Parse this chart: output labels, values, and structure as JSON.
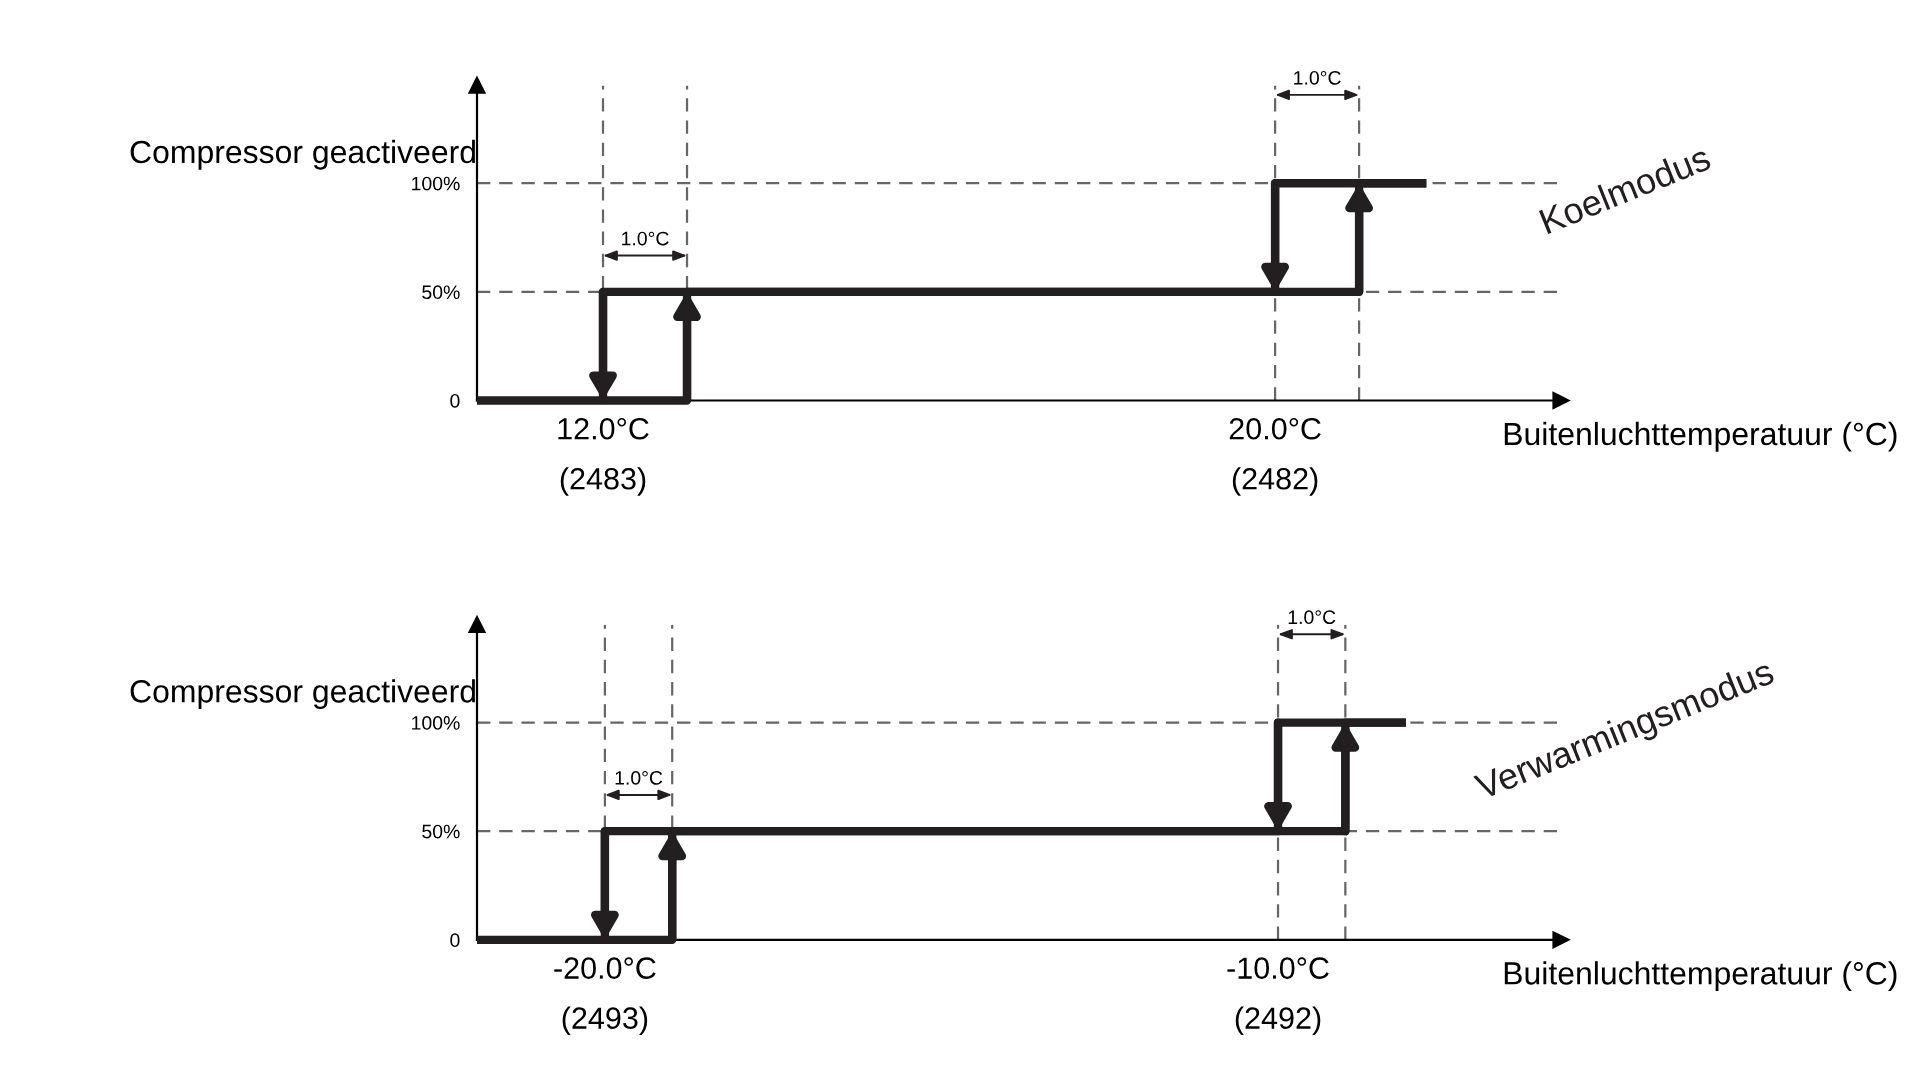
{
  "chart_data": [
    {
      "type": "line",
      "ylabel": "Compressor geactiveerd",
      "xlabel": "Buitenluchttemperatuur (°C)",
      "xlim": [
        10.5,
        23.4
      ],
      "ylim": [
        0,
        145
      ],
      "xticks": [
        {
          "value": 12,
          "label": "12.0°C"
        },
        {
          "value": 20,
          "label": "20.0°C"
        }
      ],
      "yticks": [
        {
          "value": 0,
          "label": "0"
        },
        {
          "value": 50,
          "label": "50%"
        },
        {
          "value": 100,
          "label": "100%"
        }
      ],
      "series": [
        {
          "color": "#231f20",
          "x": [
            10.5,
            13,
            13,
            21,
            21,
            21.8
          ],
          "values": [
            0,
            0,
            50,
            50,
            100,
            100
          ]
        },
        {
          "color": "#231f20",
          "x": [
            21.8,
            20,
            20,
            12,
            12
          ],
          "values": [
            100,
            100,
            50,
            50,
            0
          ]
        }
      ],
      "ref_lines": [
        {
          "axis": "y",
          "value": 50,
          "line_style": "dashed",
          "color": "#666666"
        },
        {
          "axis": "y",
          "value": 100,
          "line_style": "dashed",
          "color": "#666666"
        },
        {
          "axis": "x",
          "value": 12,
          "line_style": "dashed",
          "color": "#666666"
        },
        {
          "axis": "x",
          "value": 13,
          "line_style": "dashed",
          "color": "#666666"
        },
        {
          "axis": "x",
          "value": 20,
          "line_style": "dashed",
          "color": "#666666"
        },
        {
          "axis": "x",
          "value": 21,
          "line_style": "dashed",
          "color": "#666666"
        }
      ],
      "annotations": [
        "1.0°C",
        "1.0°C",
        "Koelmodus",
        "(2483)",
        "(2482)"
      ],
      "grid": false,
      "legend": false,
      "marker": "none",
      "line_style": "solid"
    },
    {
      "type": "line",
      "ylabel": "Compressor geactiveerd",
      "xlabel": "Buitenluchttemperatuur (°C)",
      "xlim": [
        -21.9,
        -5.8
      ],
      "ylim": [
        0,
        145
      ],
      "xticks": [
        {
          "value": -20,
          "label": "-20.0°C"
        },
        {
          "value": -10,
          "label": "-10.0°C"
        }
      ],
      "yticks": [
        {
          "value": 0,
          "label": "0"
        },
        {
          "value": 50,
          "label": "50%"
        },
        {
          "value": 100,
          "label": "100%"
        }
      ],
      "series": [
        {
          "color": "#231f20",
          "x": [
            -21.9,
            -19,
            -19,
            -9,
            -9,
            -8.1
          ],
          "values": [
            0,
            0,
            50,
            50,
            100,
            100
          ]
        },
        {
          "color": "#231f20",
          "x": [
            -8.1,
            -10,
            -10,
            -20,
            -20
          ],
          "values": [
            100,
            100,
            50,
            50,
            0
          ]
        }
      ],
      "ref_lines": [
        {
          "axis": "y",
          "value": 50,
          "line_style": "dashed",
          "color": "#666666"
        },
        {
          "axis": "y",
          "value": 100,
          "line_style": "dashed",
          "color": "#666666"
        },
        {
          "axis": "x",
          "value": -20,
          "line_style": "dashed",
          "color": "#666666"
        },
        {
          "axis": "x",
          "value": -19,
          "line_style": "dashed",
          "color": "#666666"
        },
        {
          "axis": "x",
          "value": -10,
          "line_style": "dashed",
          "color": "#666666"
        },
        {
          "axis": "x",
          "value": -9,
          "line_style": "dashed",
          "color": "#666666"
        }
      ],
      "annotations": [
        "1.0°C",
        "1.0°C",
        "Verwarmingsmodus",
        "(2493)",
        "(2492)"
      ],
      "grid": false,
      "legend": false,
      "marker": "none",
      "line_style": "solid"
    }
  ]
}
